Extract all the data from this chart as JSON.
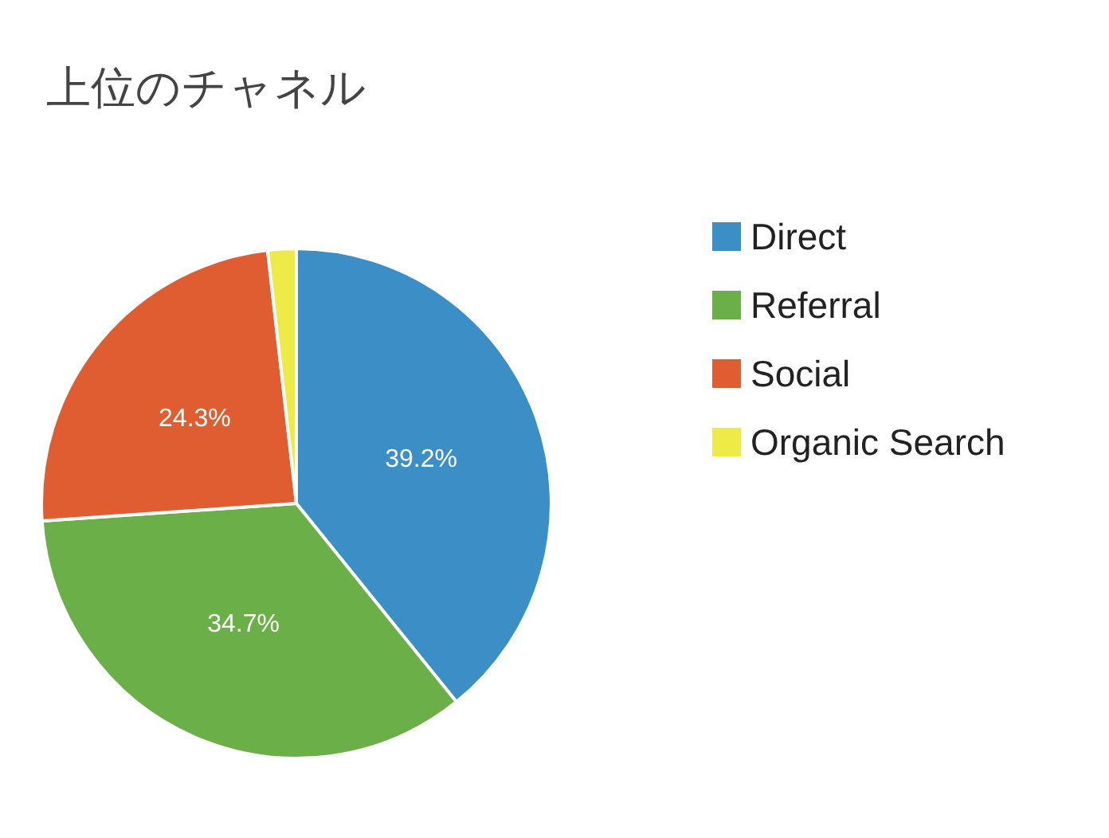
{
  "chart_data": {
    "type": "pie",
    "title": "上位のチャネル",
    "categories": [
      "Direct",
      "Referral",
      "Social",
      "Organic Search"
    ],
    "values": [
      39.2,
      34.7,
      24.3,
      1.8
    ],
    "colors": [
      "#3b8fc6",
      "#6aaf48",
      "#e05d31",
      "#eeea48"
    ],
    "value_labels": [
      "39.2%",
      "34.7%",
      "24.3%",
      null
    ],
    "legend": "right"
  }
}
